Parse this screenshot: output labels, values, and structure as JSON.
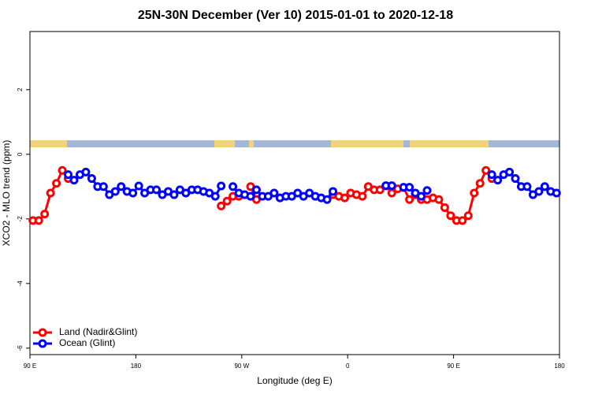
{
  "chart_data": {
    "type": "line",
    "title": "25N-30N December (Ver 10)   2015-01-01 to 2020-12-18",
    "x_label": "Longitude (deg E)",
    "y_label": "XCO2 - MLO trend (ppm)",
    "x": [
      92.5,
      97.5,
      102.5,
      107.5,
      112.5,
      117.5,
      122.5,
      127.5,
      132.5,
      137.5,
      142.5,
      147.5,
      152.5,
      157.5,
      162.5,
      167.5,
      172.5,
      177.5,
      182.5,
      187.5,
      192.5,
      197.5,
      202.5,
      207.5,
      212.5,
      217.5,
      222.5,
      227.5,
      232.5,
      237.5,
      242.5,
      247.5,
      252.5,
      257.5,
      262.5,
      267.5,
      272.5,
      277.5,
      282.5,
      287.5,
      292.5,
      297.5,
      302.5,
      307.5,
      312.5,
      317.5,
      322.5,
      327.5,
      332.5,
      337.5,
      342.5,
      347.5,
      352.5,
      357.5,
      362.5,
      367.5,
      372.5,
      377.5,
      382.5,
      387.5,
      392.5,
      397.5,
      402.5,
      407.5,
      412.5,
      417.5,
      422.5,
      427.5,
      432.5,
      437.5,
      442.5,
      447.5,
      452.5,
      457.5,
      462.5,
      467.5,
      472.5,
      477.5,
      482.5,
      487.5,
      492.5,
      497.5,
      502.5,
      507.5,
      512.5,
      517.5,
      522.5,
      527.5,
      532.5,
      537.5
    ],
    "series": [
      {
        "name": "Land (Nadir&Glint)",
        "color": "#ff0000",
        "values": [
          -2.05,
          -2.05,
          -1.85,
          -1.2,
          -0.9,
          -0.5,
          -0.75,
          null,
          null,
          null,
          null,
          null,
          null,
          null,
          null,
          null,
          null,
          null,
          null,
          null,
          null,
          null,
          null,
          null,
          null,
          null,
          null,
          null,
          null,
          null,
          null,
          null,
          -1.6,
          -1.45,
          -1.3,
          -1.3,
          null,
          -1.0,
          -1.4,
          null,
          null,
          null,
          null,
          null,
          null,
          null,
          null,
          null,
          null,
          null,
          null,
          -1.25,
          -1.3,
          -1.35,
          -1.2,
          -1.25,
          -1.3,
          -1.0,
          -1.1,
          -1.1,
          -0.98,
          -1.2,
          -1.07,
          -1.03,
          -1.4,
          -1.25,
          -1.4,
          -1.4,
          -1.35,
          -1.4,
          -1.65,
          -1.9,
          -2.05,
          -2.05,
          -1.9,
          -1.2,
          -0.9,
          -0.5,
          -0.75,
          null,
          null,
          null,
          null,
          null,
          null,
          null,
          null,
          null,
          null,
          null
        ]
      },
      {
        "name": "Ocean (Glint)",
        "color": "#0000ff",
        "values": [
          null,
          null,
          null,
          null,
          null,
          null,
          -0.63,
          -0.8,
          -0.63,
          -0.55,
          -0.75,
          -1.0,
          -1.0,
          -1.25,
          -1.15,
          -1.0,
          -1.15,
          -1.2,
          -0.98,
          -1.2,
          -1.1,
          -1.1,
          -1.25,
          -1.15,
          -1.25,
          -1.1,
          -1.2,
          -1.1,
          -1.1,
          -1.15,
          -1.2,
          -1.3,
          -0.98,
          null,
          -1.0,
          -1.2,
          -1.25,
          -1.3,
          -1.1,
          -1.3,
          -1.3,
          -1.2,
          -1.35,
          -1.3,
          -1.3,
          -1.2,
          -1.3,
          -1.2,
          -1.3,
          -1.35,
          -1.4,
          -1.15,
          null,
          null,
          null,
          null,
          null,
          null,
          null,
          null,
          -0.97,
          -0.97,
          null,
          -1.02,
          -1.02,
          -1.2,
          -1.3,
          -1.12,
          null,
          null,
          null,
          null,
          null,
          null,
          null,
          null,
          null,
          null,
          -0.63,
          -0.8,
          -0.63,
          -0.55,
          -0.75,
          -1.0,
          -1.0,
          -1.25,
          -1.15,
          -1.0,
          -1.15,
          -1.2
        ]
      }
    ],
    "xlim": [
      90,
      540
    ],
    "xticks": [
      {
        "value": 90,
        "label": "90 E"
      },
      180,
      {
        "value": 270,
        "label": "90 W"
      },
      {
        "value": 360,
        "label": "0"
      },
      {
        "value": 450,
        "label": "90 E"
      },
      {
        "value": 540,
        "label": "180"
      }
    ],
    "ylim": [
      -6.2,
      3.8
    ],
    "yticks": [
      -6,
      -4,
      -2,
      0,
      2
    ],
    "legend": "bottom-left"
  }
}
